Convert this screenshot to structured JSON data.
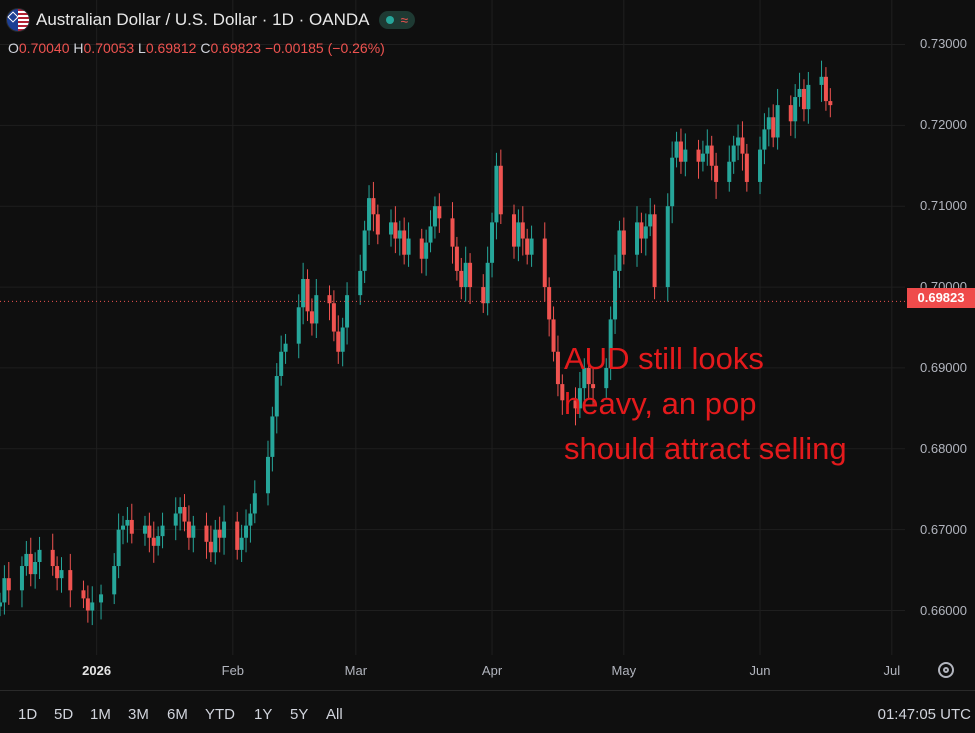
{
  "header": {
    "title": "Australian Dollar / U.S. Dollar · 1D · OANDA",
    "ohlc": {
      "o_label": "O",
      "o": "0.70040",
      "h_label": "H",
      "h": "0.70053",
      "l_label": "L",
      "l": "0.69812",
      "c_label": "C",
      "c": "0.69823",
      "change": "−0.00185 (−0.26%)"
    }
  },
  "annotation": "AUD still looks\nheavy, an pop\nshould attract selling",
  "price_tag": "0.69823",
  "range_buttons": [
    "1D",
    "5D",
    "1M",
    "3M",
    "6M",
    "YTD",
    "1Y",
    "5Y",
    "All"
  ],
  "clock": "01:47:05 UTC",
  "colors": {
    "up": "#26a69a",
    "down": "#ef5350",
    "background": "#0f0f0f",
    "grid": "#1f1f1f",
    "annotation": "#e41a1c"
  },
  "chart_data": {
    "type": "candlestick",
    "ylim": [
      0.6545,
      0.7355
    ],
    "y_ticks": [
      "0.73000",
      "0.72000",
      "0.71000",
      "0.70000",
      "0.69000",
      "0.68000",
      "0.67000",
      "0.66000"
    ],
    "y_tick_values": [
      0.73,
      0.72,
      0.71,
      0.7,
      0.69,
      0.68,
      0.67,
      0.66
    ],
    "x_ticks": [
      {
        "label": "2026",
        "date": "2026-01-01"
      },
      {
        "label": "Feb",
        "date": "2026-02-01"
      },
      {
        "label": "Mar",
        "date": "2026-03-01"
      },
      {
        "label": "Apr",
        "date": "2026-04-01"
      },
      {
        "label": "May",
        "date": "2026-05-01"
      },
      {
        "label": "Jun",
        "date": "2026-06-01"
      },
      {
        "label": "Jul",
        "date": "2026-07-01"
      }
    ],
    "xlim": [
      "2025-12-10",
      "2026-07-04"
    ],
    "last_close": 0.69823,
    "grid": true,
    "closes": [
      [
        "2025-12-10",
        0.661
      ],
      [
        "2025-12-11",
        0.664
      ],
      [
        "2025-12-12",
        0.6625
      ],
      [
        "2025-12-15",
        0.6655
      ],
      [
        "2025-12-16",
        0.667
      ],
      [
        "2025-12-17",
        0.6645
      ],
      [
        "2025-12-18",
        0.666
      ],
      [
        "2025-12-19",
        0.6675
      ],
      [
        "2025-12-22",
        0.6655
      ],
      [
        "2025-12-23",
        0.664
      ],
      [
        "2025-12-24",
        0.665
      ],
      [
        "2025-12-26",
        0.6625
      ],
      [
        "2025-12-29",
        0.6615
      ],
      [
        "2025-12-30",
        0.66
      ],
      [
        "2025-12-31",
        0.661
      ],
      [
        "2026-01-02",
        0.662
      ],
      [
        "2026-01-05",
        0.6655
      ],
      [
        "2026-01-06",
        0.67
      ],
      [
        "2026-01-07",
        0.6705
      ],
      [
        "2026-01-08",
        0.6712
      ],
      [
        "2026-01-09",
        0.6695
      ],
      [
        "2026-01-12",
        0.6705
      ],
      [
        "2026-01-13",
        0.669
      ],
      [
        "2026-01-14",
        0.668
      ],
      [
        "2026-01-15",
        0.6692
      ],
      [
        "2026-01-16",
        0.6705
      ],
      [
        "2026-01-19",
        0.672
      ],
      [
        "2026-01-20",
        0.6728
      ],
      [
        "2026-01-21",
        0.671
      ],
      [
        "2026-01-22",
        0.669
      ],
      [
        "2026-01-23",
        0.6705
      ],
      [
        "2026-01-26",
        0.6685
      ],
      [
        "2026-01-27",
        0.6672
      ],
      [
        "2026-01-28",
        0.67
      ],
      [
        "2026-01-29",
        0.669
      ],
      [
        "2026-01-30",
        0.671
      ],
      [
        "2026-02-02",
        0.6675
      ],
      [
        "2026-02-03",
        0.669
      ],
      [
        "2026-02-04",
        0.6705
      ],
      [
        "2026-02-05",
        0.672
      ],
      [
        "2026-02-06",
        0.6745
      ],
      [
        "2026-02-09",
        0.679
      ],
      [
        "2026-02-10",
        0.684
      ],
      [
        "2026-02-11",
        0.689
      ],
      [
        "2026-02-12",
        0.692
      ],
      [
        "2026-02-13",
        0.693
      ],
      [
        "2026-02-16",
        0.6975
      ],
      [
        "2026-02-17",
        0.701
      ],
      [
        "2026-02-18",
        0.697
      ],
      [
        "2026-02-19",
        0.6955
      ],
      [
        "2026-02-20",
        0.699
      ],
      [
        "2026-02-23",
        0.698
      ],
      [
        "2026-02-24",
        0.6945
      ],
      [
        "2026-02-25",
        0.692
      ],
      [
        "2026-02-26",
        0.695
      ],
      [
        "2026-02-27",
        0.699
      ],
      [
        "2026-03-02",
        0.702
      ],
      [
        "2026-03-03",
        0.707
      ],
      [
        "2026-03-04",
        0.711
      ],
      [
        "2026-03-05",
        0.709
      ],
      [
        "2026-03-06",
        0.7065
      ],
      [
        "2026-03-09",
        0.708
      ],
      [
        "2026-03-10",
        0.706
      ],
      [
        "2026-03-11",
        0.707
      ],
      [
        "2026-03-12",
        0.704
      ],
      [
        "2026-03-13",
        0.706
      ],
      [
        "2026-03-16",
        0.7035
      ],
      [
        "2026-03-17",
        0.7055
      ],
      [
        "2026-03-18",
        0.7075
      ],
      [
        "2026-03-19",
        0.71
      ],
      [
        "2026-03-20",
        0.7085
      ],
      [
        "2026-03-23",
        0.705
      ],
      [
        "2026-03-24",
        0.702
      ],
      [
        "2026-03-25",
        0.7
      ],
      [
        "2026-03-26",
        0.703
      ],
      [
        "2026-03-27",
        0.7
      ],
      [
        "2026-03-30",
        0.698
      ],
      [
        "2026-03-31",
        0.703
      ],
      [
        "2026-04-01",
        0.708
      ],
      [
        "2026-04-02",
        0.715
      ],
      [
        "2026-04-03",
        0.709
      ],
      [
        "2026-04-06",
        0.705
      ],
      [
        "2026-04-07",
        0.708
      ],
      [
        "2026-04-08",
        0.706
      ],
      [
        "2026-04-09",
        0.704
      ],
      [
        "2026-04-10",
        0.706
      ],
      [
        "2026-04-13",
        0.7
      ],
      [
        "2026-04-14",
        0.696
      ],
      [
        "2026-04-15",
        0.692
      ],
      [
        "2026-04-16",
        0.688
      ],
      [
        "2026-04-17",
        0.686
      ],
      [
        "2026-04-20",
        0.685
      ],
      [
        "2026-04-21",
        0.6875
      ],
      [
        "2026-04-22",
        0.69
      ],
      [
        "2026-04-23",
        0.688
      ],
      [
        "2026-04-24",
        0.6875
      ],
      [
        "2026-04-27",
        0.69
      ],
      [
        "2026-04-28",
        0.696
      ],
      [
        "2026-04-29",
        0.702
      ],
      [
        "2026-04-30",
        0.707
      ],
      [
        "2026-05-01",
        0.704
      ],
      [
        "2026-05-04",
        0.708
      ],
      [
        "2026-05-05",
        0.706
      ],
      [
        "2026-05-06",
        0.7075
      ],
      [
        "2026-05-07",
        0.709
      ],
      [
        "2026-05-08",
        0.7
      ],
      [
        "2026-05-11",
        0.71
      ],
      [
        "2026-05-12",
        0.716
      ],
      [
        "2026-05-13",
        0.718
      ],
      [
        "2026-05-14",
        0.7155
      ],
      [
        "2026-05-15",
        0.717
      ],
      [
        "2026-05-18",
        0.7155
      ],
      [
        "2026-05-19",
        0.7165
      ],
      [
        "2026-05-20",
        0.7175
      ],
      [
        "2026-05-21",
        0.715
      ],
      [
        "2026-05-22",
        0.713
      ],
      [
        "2026-05-25",
        0.7155
      ],
      [
        "2026-05-26",
        0.7175
      ],
      [
        "2026-05-27",
        0.7185
      ],
      [
        "2026-05-28",
        0.7165
      ],
      [
        "2026-05-29",
        0.713
      ],
      [
        "2026-06-01",
        0.717
      ],
      [
        "2026-06-02",
        0.7195
      ],
      [
        "2026-06-03",
        0.721
      ],
      [
        "2026-06-04",
        0.7185
      ],
      [
        "2026-06-05",
        0.7225
      ],
      [
        "2026-06-08",
        0.7205
      ],
      [
        "2026-06-09",
        0.7235
      ],
      [
        "2026-06-10",
        0.7245
      ],
      [
        "2026-06-11",
        0.722
      ],
      [
        "2026-06-12",
        0.725
      ],
      [
        "2026-06-15",
        0.726
      ],
      [
        "2026-06-16",
        0.723
      ],
      [
        "2026-06-17",
        0.7225
      ]
    ]
  }
}
